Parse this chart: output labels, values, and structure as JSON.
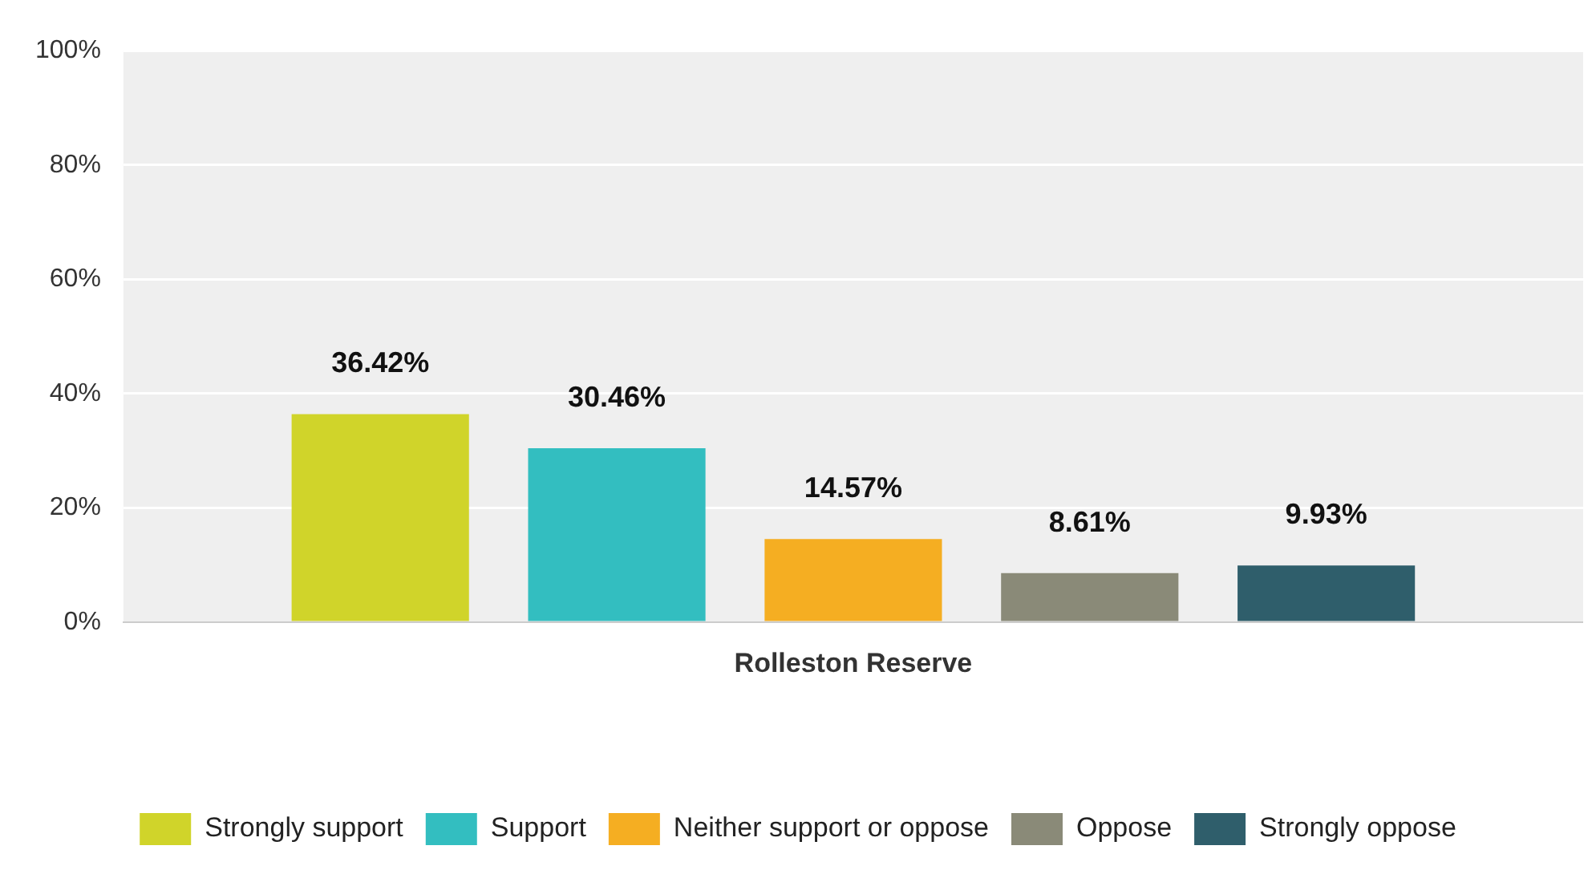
{
  "chart_data": {
    "type": "bar",
    "categories": [
      "Rolleston Reserve"
    ],
    "series": [
      {
        "name": "Strongly support",
        "color": "#d0d42a",
        "values": [
          36.42
        ],
        "value_labels": [
          "36.42%"
        ]
      },
      {
        "name": "Support",
        "color": "#33bec0",
        "values": [
          30.46
        ],
        "value_labels": [
          "30.46%"
        ]
      },
      {
        "name": "Neither support or oppose",
        "color": "#f5ae22",
        "values": [
          14.57
        ],
        "value_labels": [
          "14.57%"
        ]
      },
      {
        "name": "Oppose",
        "color": "#8a8a78",
        "values": [
          8.61
        ],
        "value_labels": [
          "8.61%"
        ]
      },
      {
        "name": "Strongly oppose",
        "color": "#2f5e6b",
        "values": [
          9.93
        ],
        "value_labels": [
          "9.93%"
        ]
      }
    ],
    "ylim": [
      0,
      100
    ],
    "yticks": [
      {
        "value": 0,
        "label": "0%"
      },
      {
        "value": 20,
        "label": "20%"
      },
      {
        "value": 40,
        "label": "40%"
      },
      {
        "value": 60,
        "label": "60%"
      },
      {
        "value": 80,
        "label": "80%"
      },
      {
        "value": 100,
        "label": "100%"
      }
    ],
    "grid": "y",
    "legend": "bottom"
  }
}
